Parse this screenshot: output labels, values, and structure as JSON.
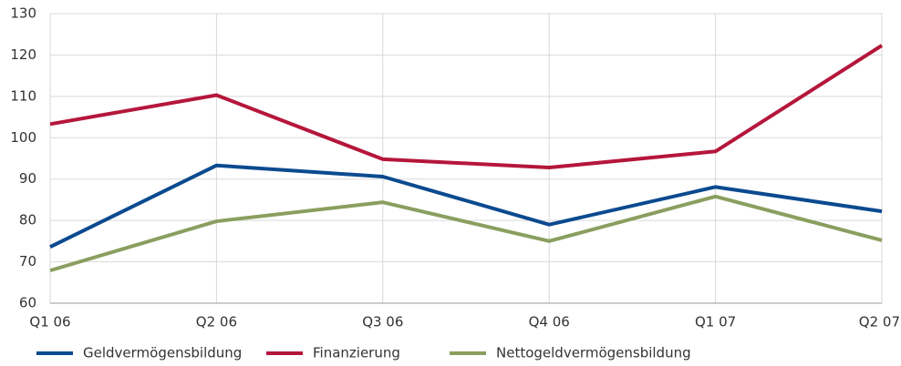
{
  "chart_data": {
    "type": "line",
    "categories": [
      "Q1 06",
      "Q2 06",
      "Q3 06",
      "Q4 06",
      "Q1 07",
      "Q2 07"
    ],
    "series": [
      {
        "name": "Geldvermögensbildung",
        "color": "#0b4a8f",
        "values": [
          73.6,
          93.3,
          90.6,
          79.0,
          88.1,
          82.2
        ]
      },
      {
        "name": "Finanzierung",
        "color": "#b5163b",
        "values": [
          103.3,
          110.3,
          94.8,
          92.8,
          96.7,
          122.3
        ]
      },
      {
        "name": "Nettogeldvermögensbildung",
        "color": "#8a9f5f",
        "values": [
          67.9,
          79.8,
          84.4,
          75.0,
          85.8,
          75.2
        ]
      }
    ],
    "ylim": [
      60,
      130
    ],
    "yticks": [
      60,
      70,
      80,
      90,
      100,
      110,
      120,
      130
    ],
    "grid": true,
    "legend": "bottom"
  }
}
